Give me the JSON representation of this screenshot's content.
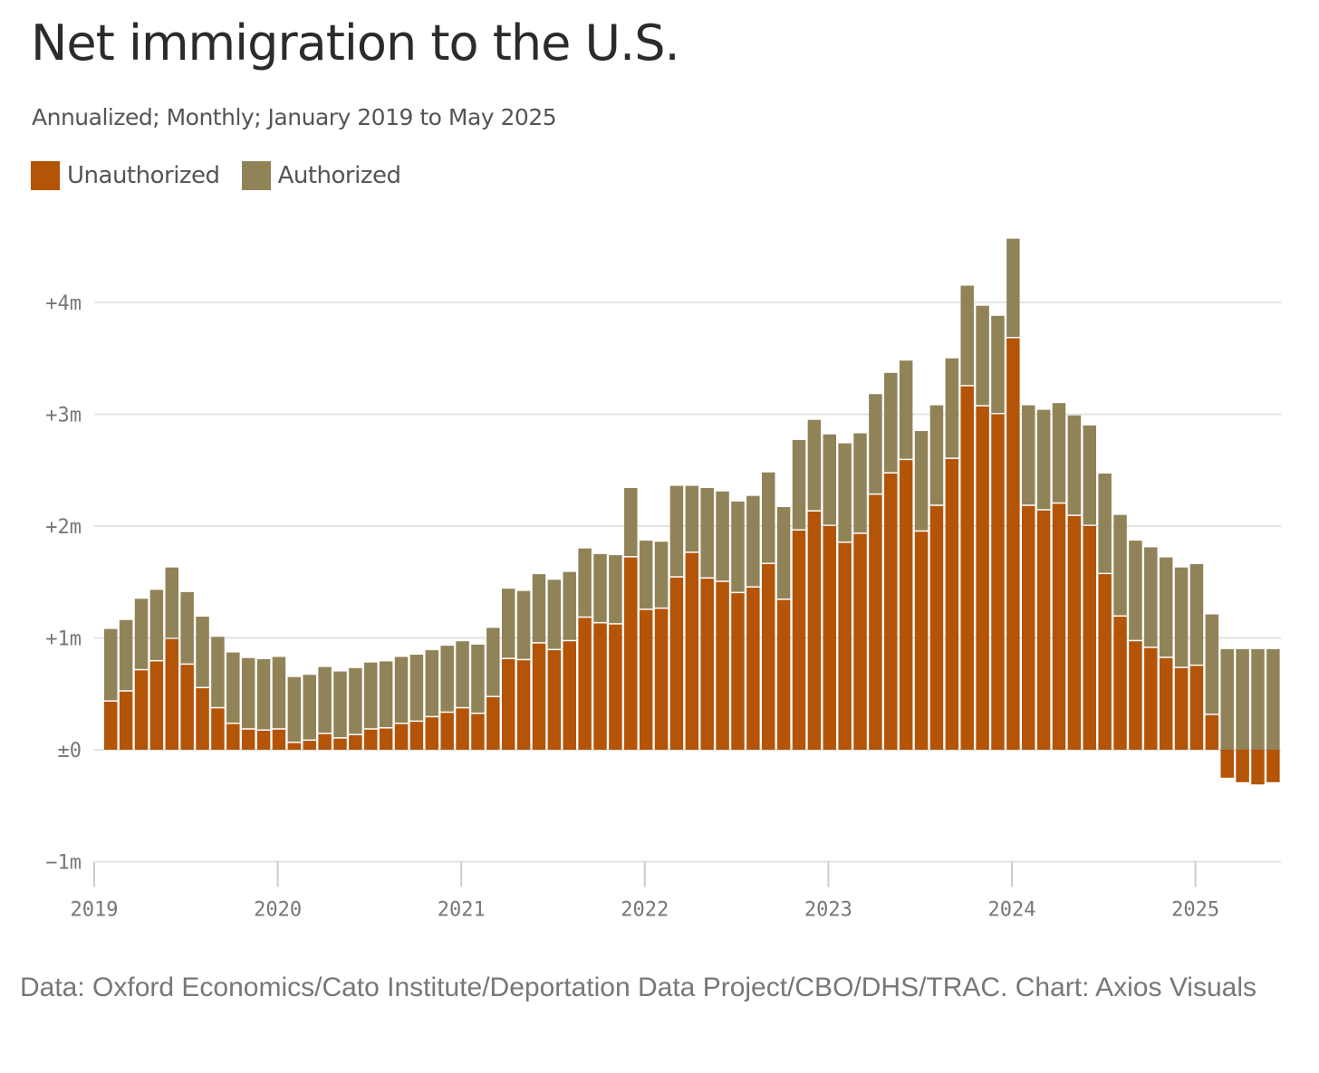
{
  "chart_data": {
    "type": "bar",
    "stacked": true,
    "title": "Net immigration to the U.S.",
    "subtitle": "Annualized; Monthly; January 2019 to May 2025",
    "xlabel": "",
    "ylabel": "",
    "ylim": [
      -1000000,
      4600000
    ],
    "grid": true,
    "legend_position": "top-left",
    "y_ticks": [
      {
        "value": 4000000,
        "label": "+4m"
      },
      {
        "value": 3000000,
        "label": "+3m"
      },
      {
        "value": 2000000,
        "label": "+2m"
      },
      {
        "value": 1000000,
        "label": "+1m"
      },
      {
        "value": 0,
        "label": "±0"
      },
      {
        "value": -1000000,
        "label": "−1m"
      }
    ],
    "x_ticks": [
      "2019",
      "2020",
      "2021",
      "2022",
      "2023",
      "2024",
      "2025"
    ],
    "categories": [
      "2019-01",
      "2019-02",
      "2019-03",
      "2019-04",
      "2019-05",
      "2019-06",
      "2019-07",
      "2019-08",
      "2019-09",
      "2019-10",
      "2019-11",
      "2019-12",
      "2020-01",
      "2020-02",
      "2020-03",
      "2020-04",
      "2020-05",
      "2020-06",
      "2020-07",
      "2020-08",
      "2020-09",
      "2020-10",
      "2020-11",
      "2020-12",
      "2021-01",
      "2021-02",
      "2021-03",
      "2021-04",
      "2021-05",
      "2021-06",
      "2021-07",
      "2021-08",
      "2021-09",
      "2021-10",
      "2021-11",
      "2021-12",
      "2022-01",
      "2022-02",
      "2022-03",
      "2022-04",
      "2022-05",
      "2022-06",
      "2022-07",
      "2022-08",
      "2022-09",
      "2022-10",
      "2022-11",
      "2022-12",
      "2023-01",
      "2023-02",
      "2023-03",
      "2023-04",
      "2023-05",
      "2023-06",
      "2023-07",
      "2023-08",
      "2023-09",
      "2023-10",
      "2023-11",
      "2023-12",
      "2024-01",
      "2024-02",
      "2024-03",
      "2024-04",
      "2024-05",
      "2024-06",
      "2024-07",
      "2024-08",
      "2024-09",
      "2024-10",
      "2024-11",
      "2024-12",
      "2025-01",
      "2025-02",
      "2025-03",
      "2025-04",
      "2025-05"
    ],
    "series": [
      {
        "name": "Unauthorized",
        "color": "#b35407",
        "values": [
          430000,
          520000,
          710000,
          790000,
          990000,
          760000,
          550000,
          370000,
          230000,
          180000,
          170000,
          180000,
          60000,
          80000,
          140000,
          100000,
          130000,
          180000,
          190000,
          230000,
          250000,
          290000,
          330000,
          370000,
          320000,
          470000,
          810000,
          800000,
          950000,
          890000,
          970000,
          1180000,
          1130000,
          1120000,
          1720000,
          1250000,
          1260000,
          1540000,
          1760000,
          1530000,
          1500000,
          1400000,
          1450000,
          1660000,
          1340000,
          1960000,
          2130000,
          2000000,
          1850000,
          1930000,
          2280000,
          2470000,
          2590000,
          1950000,
          2180000,
          2600000,
          3250000,
          3070000,
          3000000,
          3680000,
          2180000,
          2140000,
          2200000,
          2090000,
          2000000,
          1570000,
          1190000,
          970000,
          910000,
          820000,
          730000,
          750000,
          310000,
          -250000,
          -290000,
          -310000,
          -290000
        ]
      },
      {
        "name": "Authorized",
        "color": "#918358",
        "values": [
          650000,
          640000,
          640000,
          640000,
          640000,
          650000,
          640000,
          640000,
          640000,
          640000,
          640000,
          650000,
          590000,
          590000,
          600000,
          600000,
          600000,
          600000,
          600000,
          600000,
          600000,
          600000,
          600000,
          600000,
          620000,
          620000,
          630000,
          620000,
          620000,
          630000,
          620000,
          620000,
          620000,
          620000,
          620000,
          620000,
          600000,
          820000,
          600000,
          810000,
          810000,
          820000,
          820000,
          820000,
          830000,
          810000,
          820000,
          820000,
          890000,
          900000,
          900000,
          900000,
          890000,
          900000,
          900000,
          900000,
          900000,
          900000,
          880000,
          890000,
          900000,
          900000,
          900000,
          900000,
          900000,
          900000,
          910000,
          900000,
          900000,
          900000,
          900000,
          910000,
          900000,
          900000,
          900000,
          900000,
          900000
        ]
      }
    ],
    "note": "Data: Oxford Economics/Cato Institute/Deportation Data Project/CBO/DHS/TRAC. Chart: Axios Visuals"
  }
}
